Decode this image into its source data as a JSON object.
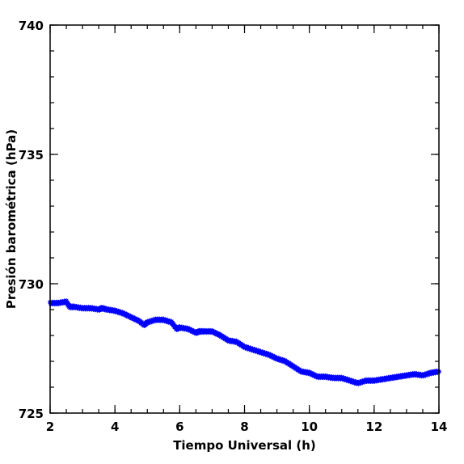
{
  "chart_data": {
    "type": "scatter",
    "xlabel": "Tiempo Universal (h)",
    "ylabel": "Presión barométrica (hPa)",
    "xlim": [
      2,
      14
    ],
    "ylim": [
      725,
      740
    ],
    "xticks": [
      2,
      4,
      6,
      8,
      10,
      12,
      14
    ],
    "yticks": [
      725,
      730,
      735,
      740
    ],
    "x_minor_step": 0.5,
    "y_minor_step": 1,
    "grid": false,
    "marker": "asterisk",
    "color": "#0000ff",
    "series": [
      {
        "x": [
          2.0,
          2.25,
          2.5,
          2.6,
          2.75,
          3.0,
          3.25,
          3.5,
          3.6,
          3.75,
          4.0,
          4.25,
          4.5,
          4.75,
          4.9,
          5.0,
          5.25,
          5.5,
          5.75,
          5.9,
          6.0,
          6.25,
          6.5,
          6.6,
          6.75,
          7.0,
          7.25,
          7.5,
          7.75,
          8.0,
          8.25,
          8.5,
          8.75,
          9.0,
          9.25,
          9.5,
          9.75,
          10.0,
          10.25,
          10.5,
          10.75,
          11.0,
          11.25,
          11.5,
          11.75,
          12.0,
          12.25,
          12.5,
          12.75,
          13.0,
          13.25,
          13.5,
          13.75,
          14.0
        ],
        "y": [
          729.25,
          729.25,
          729.3,
          729.1,
          729.1,
          729.05,
          729.05,
          729.0,
          729.05,
          729.0,
          728.95,
          728.85,
          728.7,
          728.55,
          728.4,
          728.5,
          728.6,
          728.6,
          728.5,
          728.25,
          728.3,
          728.25,
          728.1,
          728.15,
          728.15,
          728.15,
          728.0,
          727.8,
          727.75,
          727.55,
          727.45,
          727.35,
          727.25,
          727.1,
          727.0,
          726.8,
          726.6,
          726.55,
          726.4,
          726.4,
          726.35,
          726.35,
          726.25,
          726.15,
          726.25,
          726.25,
          726.3,
          726.35,
          726.4,
          726.45,
          726.5,
          726.45,
          726.55,
          726.6
        ]
      }
    ]
  }
}
